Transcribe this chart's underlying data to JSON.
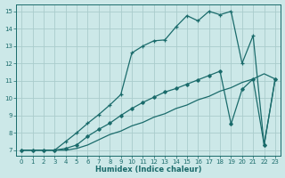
{
  "xlabel": "Humidex (Indice chaleur)",
  "background_color": "#cce8e8",
  "grid_color": "#aacccc",
  "line_color": "#1a6b6b",
  "xlim": [
    -0.5,
    23.5
  ],
  "ylim": [
    6.7,
    15.4
  ],
  "xticks": [
    0,
    1,
    2,
    3,
    4,
    5,
    6,
    7,
    8,
    9,
    10,
    11,
    12,
    13,
    14,
    15,
    16,
    17,
    18,
    19,
    20,
    21,
    22,
    23
  ],
  "yticks": [
    7,
    8,
    9,
    10,
    11,
    12,
    13,
    14,
    15
  ],
  "line1_no_marker": {
    "x": [
      0,
      1,
      2,
      3,
      4,
      5,
      6,
      7,
      8,
      9,
      10,
      11,
      12,
      13,
      14,
      15,
      16,
      17,
      18,
      19,
      20,
      21,
      22,
      23
    ],
    "y": [
      7,
      7,
      7,
      7,
      7,
      7.1,
      7.3,
      7.6,
      7.9,
      8.1,
      8.4,
      8.6,
      8.9,
      9.1,
      9.4,
      9.6,
      9.9,
      10.1,
      10.4,
      10.6,
      10.9,
      11.1,
      11.4,
      11.1
    ]
  },
  "line2_diamond": {
    "x": [
      0,
      1,
      2,
      3,
      4,
      5,
      6,
      7,
      8,
      9,
      10,
      11,
      12,
      13,
      14,
      15,
      16,
      17,
      18,
      19,
      20,
      21,
      22,
      23
    ],
    "y": [
      7,
      7,
      7,
      7,
      7.1,
      7.3,
      7.8,
      8.2,
      8.55,
      9.0,
      9.4,
      9.75,
      10.05,
      10.35,
      10.55,
      10.8,
      11.05,
      11.3,
      11.55,
      8.5,
      10.5,
      11.1,
      7.3,
      11.1
    ]
  },
  "line3_cross": {
    "x": [
      0,
      1,
      2,
      3,
      4,
      5,
      6,
      7,
      8,
      9,
      10,
      11,
      12,
      13,
      14,
      15,
      16,
      17,
      18,
      19,
      20,
      21,
      22,
      23
    ],
    "y": [
      7,
      7,
      7,
      7,
      7.5,
      8.0,
      8.55,
      9.05,
      9.6,
      10.2,
      12.6,
      13.0,
      13.3,
      13.35,
      14.1,
      14.75,
      14.45,
      15.0,
      14.8,
      15.0,
      12.0,
      13.6,
      7.3,
      11.1
    ]
  }
}
